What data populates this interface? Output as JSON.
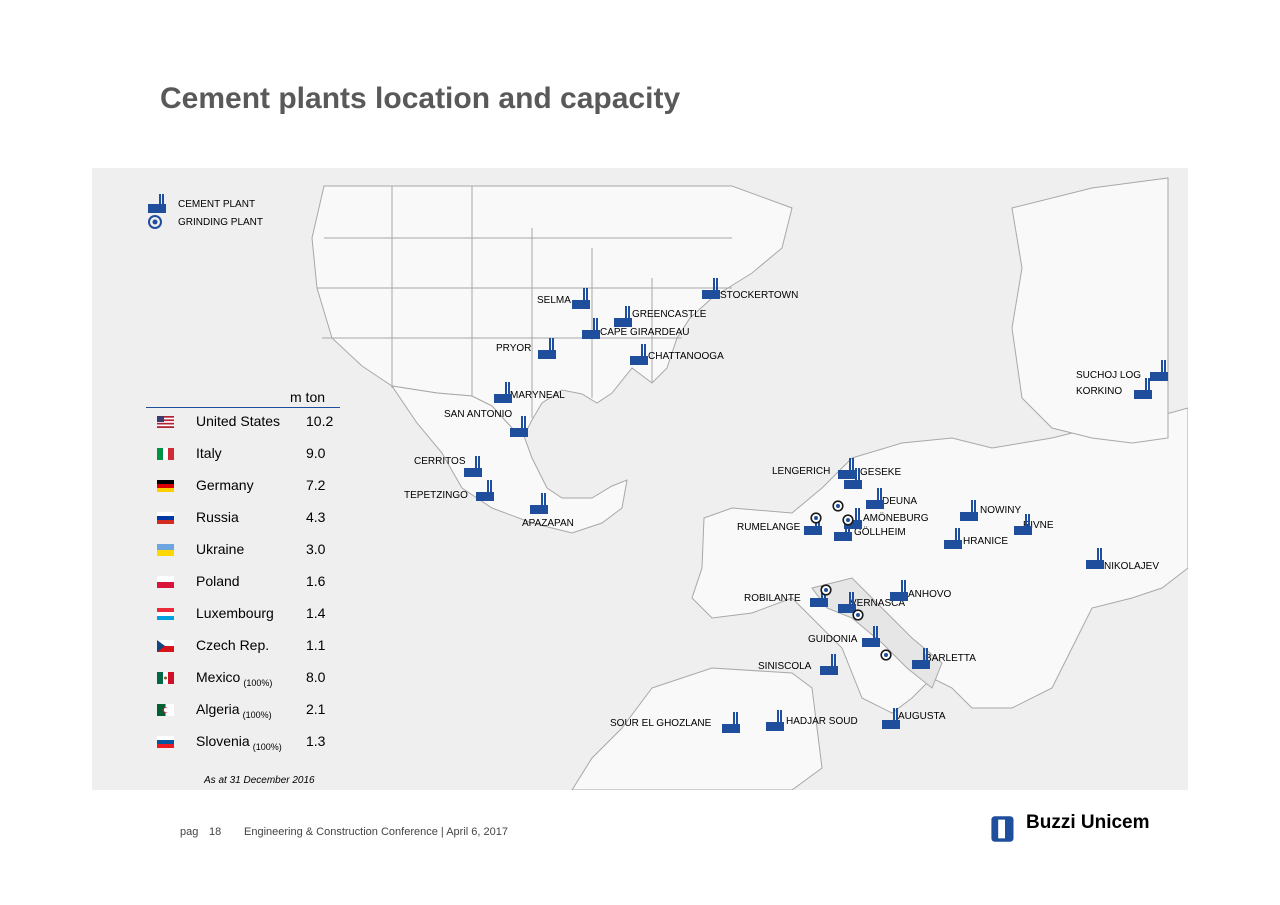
{
  "title": "Cement plants location and capacity",
  "legend": {
    "cement_plant": "CEMENT PLANT",
    "grinding_plant": "GRINDING PLANT"
  },
  "table": {
    "unit": "m ton",
    "rows": [
      {
        "country": "United States",
        "note": "",
        "value": "10.2",
        "flag": "us"
      },
      {
        "country": "Italy",
        "note": "",
        "value": "9.0",
        "flag": "it"
      },
      {
        "country": "Germany",
        "note": "",
        "value": "7.2",
        "flag": "de"
      },
      {
        "country": "Russia",
        "note": "",
        "value": "4.3",
        "flag": "ru"
      },
      {
        "country": "Ukraine",
        "note": "",
        "value": "3.0",
        "flag": "ua"
      },
      {
        "country": "Poland",
        "note": "",
        "value": "1.6",
        "flag": "pl"
      },
      {
        "country": "Luxembourg",
        "note": "",
        "value": "1.4",
        "flag": "lu"
      },
      {
        "country": "Czech Rep.",
        "note": "",
        "value": "1.1",
        "flag": "cz"
      },
      {
        "country": "Mexico",
        "note": "(100%)",
        "value": "8.0",
        "flag": "mx"
      },
      {
        "country": "Algeria",
        "note": "(100%)",
        "value": "2.1",
        "flag": "dz"
      },
      {
        "country": "Slovenia",
        "note": "(100%)",
        "value": "1.3",
        "flag": "si"
      }
    ],
    "as_at": "As at 31 December  2016"
  },
  "plants": {
    "selma": "SELMA",
    "stockertown": "STOCKERTOWN",
    "greencastle": "GREENCASTLE",
    "cape_girardeau": "CAPE GIRARDEAU",
    "pryor": "PRYOR",
    "chattanooga": "CHATTANOOGA",
    "maryneal": "MARYNEAL",
    "san_antonio": "SAN ANTONIO",
    "cerritos": "CERRITOS",
    "tepetzingo": "TEPETZINGO",
    "apazapan": "APAZAPAN",
    "suchoj_log": "SUCHOJ  LOG",
    "korkino": "KORKINO",
    "lengerich": "LENGERICH",
    "geseke": "GESEKE",
    "deuna": "DEUNA",
    "amoneburg": "AMÖNEBURG",
    "gollheim": "GÖLLHEIM",
    "rumelange": "RUMELANGE",
    "nowiny": "NOWINY",
    "rivne": "RIVNE",
    "hranice": "HRANICE",
    "nikolajev": "NIKOLAJEV",
    "robilante": "ROBILANTE",
    "anhovo": "ANHOVO",
    "vernasca": "VERNASCA",
    "guidonia": "GUIDONIA",
    "siniscola": "SINISCOLA",
    "barletta": "BARLETTA",
    "augusta": "AUGUSTA",
    "hadjar_soud": "HADJAR SOUD",
    "sour_el_ghozlane": "SOUR EL GHOZLANE"
  },
  "footer": {
    "page_label": "pag",
    "page_number": "18",
    "event": "Engineering  & Construction  Conference  |  April 6, 2017"
  },
  "logo": {
    "text": "Buzzi Unicem"
  },
  "colors": {
    "title": "#595959",
    "plant_icon": "#1f4e9c",
    "map_bg": "#efefef",
    "land": "#f9f9f9"
  }
}
